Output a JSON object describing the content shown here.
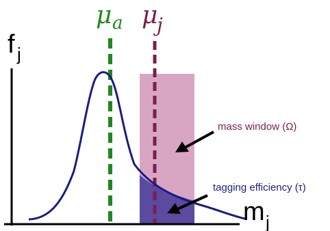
{
  "axes": {
    "y_label": "f",
    "y_label_sub": "j",
    "x_label": "m",
    "x_label_sub": "j"
  },
  "markers": {
    "mu_a": {
      "symbol": "μ",
      "sub": "a",
      "color": "#1e8a1e"
    },
    "mu_j": {
      "symbol": "μ",
      "sub": "j",
      "color": "#7a1f4e"
    }
  },
  "annotations": {
    "mass_window": {
      "text": "mass window (Ω)",
      "color": "#7a1f4e"
    },
    "tagging_efficiency": {
      "text": "tagging efficiency (τ)",
      "color": "#1c1c8c"
    }
  },
  "colors": {
    "curve": "#1a1a8a",
    "window_fill": "#d8a6c3",
    "efficiency_fill": "#5a4aa0",
    "axis": "#000000",
    "arrow": "#000000"
  }
}
